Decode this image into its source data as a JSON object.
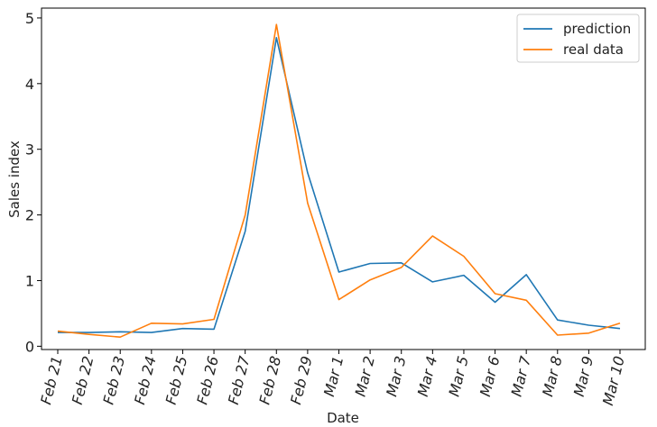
{
  "chart_data": {
    "type": "line",
    "title": "",
    "xlabel": "Date",
    "ylabel": "Sales index",
    "categories": [
      "Feb 21",
      "Feb 22",
      "Feb 23",
      "Feb 24",
      "Feb 25",
      "Feb 26",
      "Feb 27",
      "Feb 28",
      "Feb 29",
      "Mar 1",
      "Mar 2",
      "Mar 3",
      "Mar 4",
      "Mar 5",
      "Mar 6",
      "Mar 7",
      "Mar 8",
      "Mar 9",
      "Mar 10"
    ],
    "ylim": [
      -0.05,
      5.15
    ],
    "yticks": [
      0,
      1,
      2,
      3,
      4,
      5
    ],
    "grid": false,
    "legend_position": "top-right",
    "series": [
      {
        "name": "prediction",
        "color": "#1f77b4",
        "values": [
          0.21,
          0.21,
          0.22,
          0.21,
          0.27,
          0.26,
          1.75,
          4.7,
          2.64,
          1.13,
          1.26,
          1.27,
          0.98,
          1.08,
          0.67,
          1.09,
          0.4,
          0.32,
          0.27
        ]
      },
      {
        "name": "real data",
        "color": "#ff7f0e",
        "values": [
          0.23,
          0.18,
          0.14,
          0.35,
          0.34,
          0.41,
          2.0,
          4.9,
          2.18,
          0.71,
          1.01,
          1.2,
          1.68,
          1.37,
          0.8,
          0.7,
          0.17,
          0.2,
          0.35
        ]
      }
    ]
  }
}
